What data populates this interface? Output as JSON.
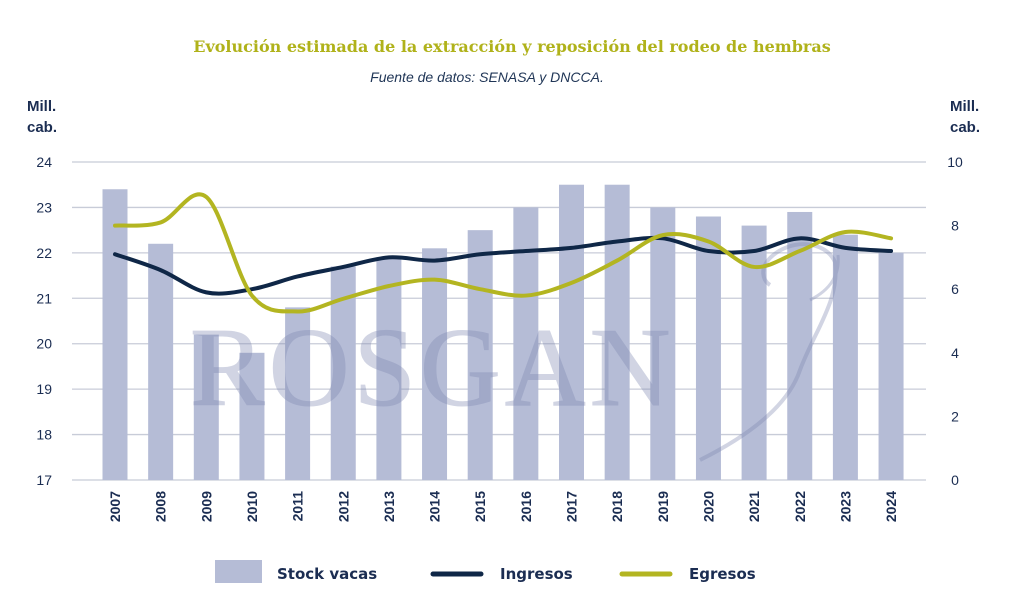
{
  "chart_data": {
    "type": "bar",
    "title": "Evolución estimada de la extracción y reposición del rodeo de hembras",
    "subtitle": "Fuente de datos: SENASA y DNCCA.",
    "left_axis_label": "Mill.\ncab.",
    "right_axis_label": "Mill.\ncab.",
    "categories": [
      "2007",
      "2008",
      "2009",
      "2010",
      "2011",
      "2012",
      "2013",
      "2014",
      "2015",
      "2016",
      "2017",
      "2018",
      "2019",
      "2020",
      "2021",
      "2022",
      "2023",
      "2024"
    ],
    "y_left": {
      "lim": [
        17,
        24
      ],
      "ticks": [
        "24",
        "23",
        "22",
        "21",
        "20",
        "19",
        "18",
        "17"
      ]
    },
    "y_right": {
      "lim": [
        0,
        10
      ],
      "ticks": [
        "10",
        "8",
        "6",
        "4",
        "2",
        "0"
      ]
    },
    "grid": true,
    "legend_position": "bottom",
    "watermark": "ROSGAN",
    "series": [
      {
        "name": "Stock vacas",
        "kind": "bar",
        "axis": "left",
        "color": "#b5bcd6",
        "values": [
          23.4,
          22.2,
          20.2,
          19.8,
          20.8,
          21.7,
          21.9,
          22.1,
          22.5,
          23.0,
          23.5,
          23.5,
          23.0,
          22.8,
          22.6,
          22.9,
          22.4,
          22.0
        ]
      },
      {
        "name": "Ingresos",
        "kind": "line",
        "axis": "right",
        "color": "#0f2747",
        "values": [
          7.1,
          6.6,
          5.9,
          6.0,
          6.4,
          6.7,
          7.0,
          6.9,
          7.1,
          7.2,
          7.3,
          7.5,
          7.6,
          7.2,
          7.2,
          7.6,
          7.3,
          7.2
        ]
      },
      {
        "name": "Egresos",
        "kind": "line",
        "axis": "right",
        "color": "#b3b521",
        "values": [
          8.0,
          8.1,
          8.9,
          5.8,
          5.3,
          5.7,
          6.1,
          6.3,
          6.0,
          5.8,
          6.2,
          6.9,
          7.7,
          7.5,
          6.7,
          7.2,
          7.8,
          7.6
        ]
      }
    ]
  }
}
